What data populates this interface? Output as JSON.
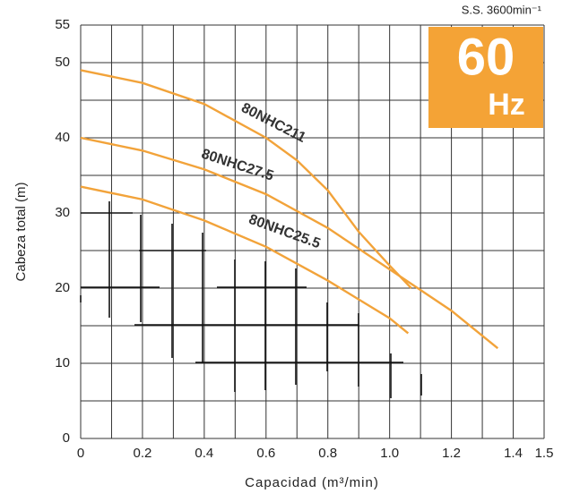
{
  "chart_data": {
    "type": "line",
    "x_label": "Capacidad (m³/min)",
    "y_label": "Cabeza total (m)",
    "annotations": {
      "speed": "S.S. 3600min⁻¹",
      "frequency": "60",
      "frequency_unit": "Hz"
    },
    "badge_color": "#f4a336",
    "xlim": [
      0,
      1.5
    ],
    "ylim": [
      0,
      55
    ],
    "xticks": [
      {
        "value": 0,
        "label": "0"
      },
      0.2,
      0.4,
      0.6,
      0.8,
      {
        "value": 1,
        "label": "1.0"
      },
      1.2,
      1.4,
      1.5
    ],
    "yticks": [
      0,
      10,
      20,
      30,
      40,
      50,
      55
    ],
    "xgrid": [
      0.1,
      0.3,
      0.5,
      0.7,
      0.9,
      1.1,
      1.3
    ],
    "ygrid": [
      5,
      15,
      25,
      35,
      45
    ],
    "grid": true,
    "series": [
      {
        "name": "80NHC211",
        "color": "#f2a33a",
        "x": [
          0,
          0.2,
          0.4,
          0.6,
          0.7,
          0.8,
          0.9,
          1.0,
          1.07
        ],
        "values": [
          49,
          47.3,
          44.5,
          40,
          37,
          33,
          27.5,
          23,
          20
        ]
      },
      {
        "name": "80NHC27.5",
        "color": "#f2a33a",
        "x": [
          0,
          0.2,
          0.4,
          0.6,
          0.8,
          1.0,
          1.2,
          1.35
        ],
        "values": [
          40,
          38.3,
          35.8,
          32.5,
          28,
          22.5,
          17,
          12
        ]
      },
      {
        "name": "80NHC25.5",
        "color": "#f2a33a",
        "x": [
          0,
          0.2,
          0.4,
          0.6,
          0.8,
          0.9,
          1.0,
          1.06
        ],
        "values": [
          33.5,
          31.8,
          29,
          25.5,
          21,
          18.5,
          16,
          14
        ]
      }
    ]
  }
}
